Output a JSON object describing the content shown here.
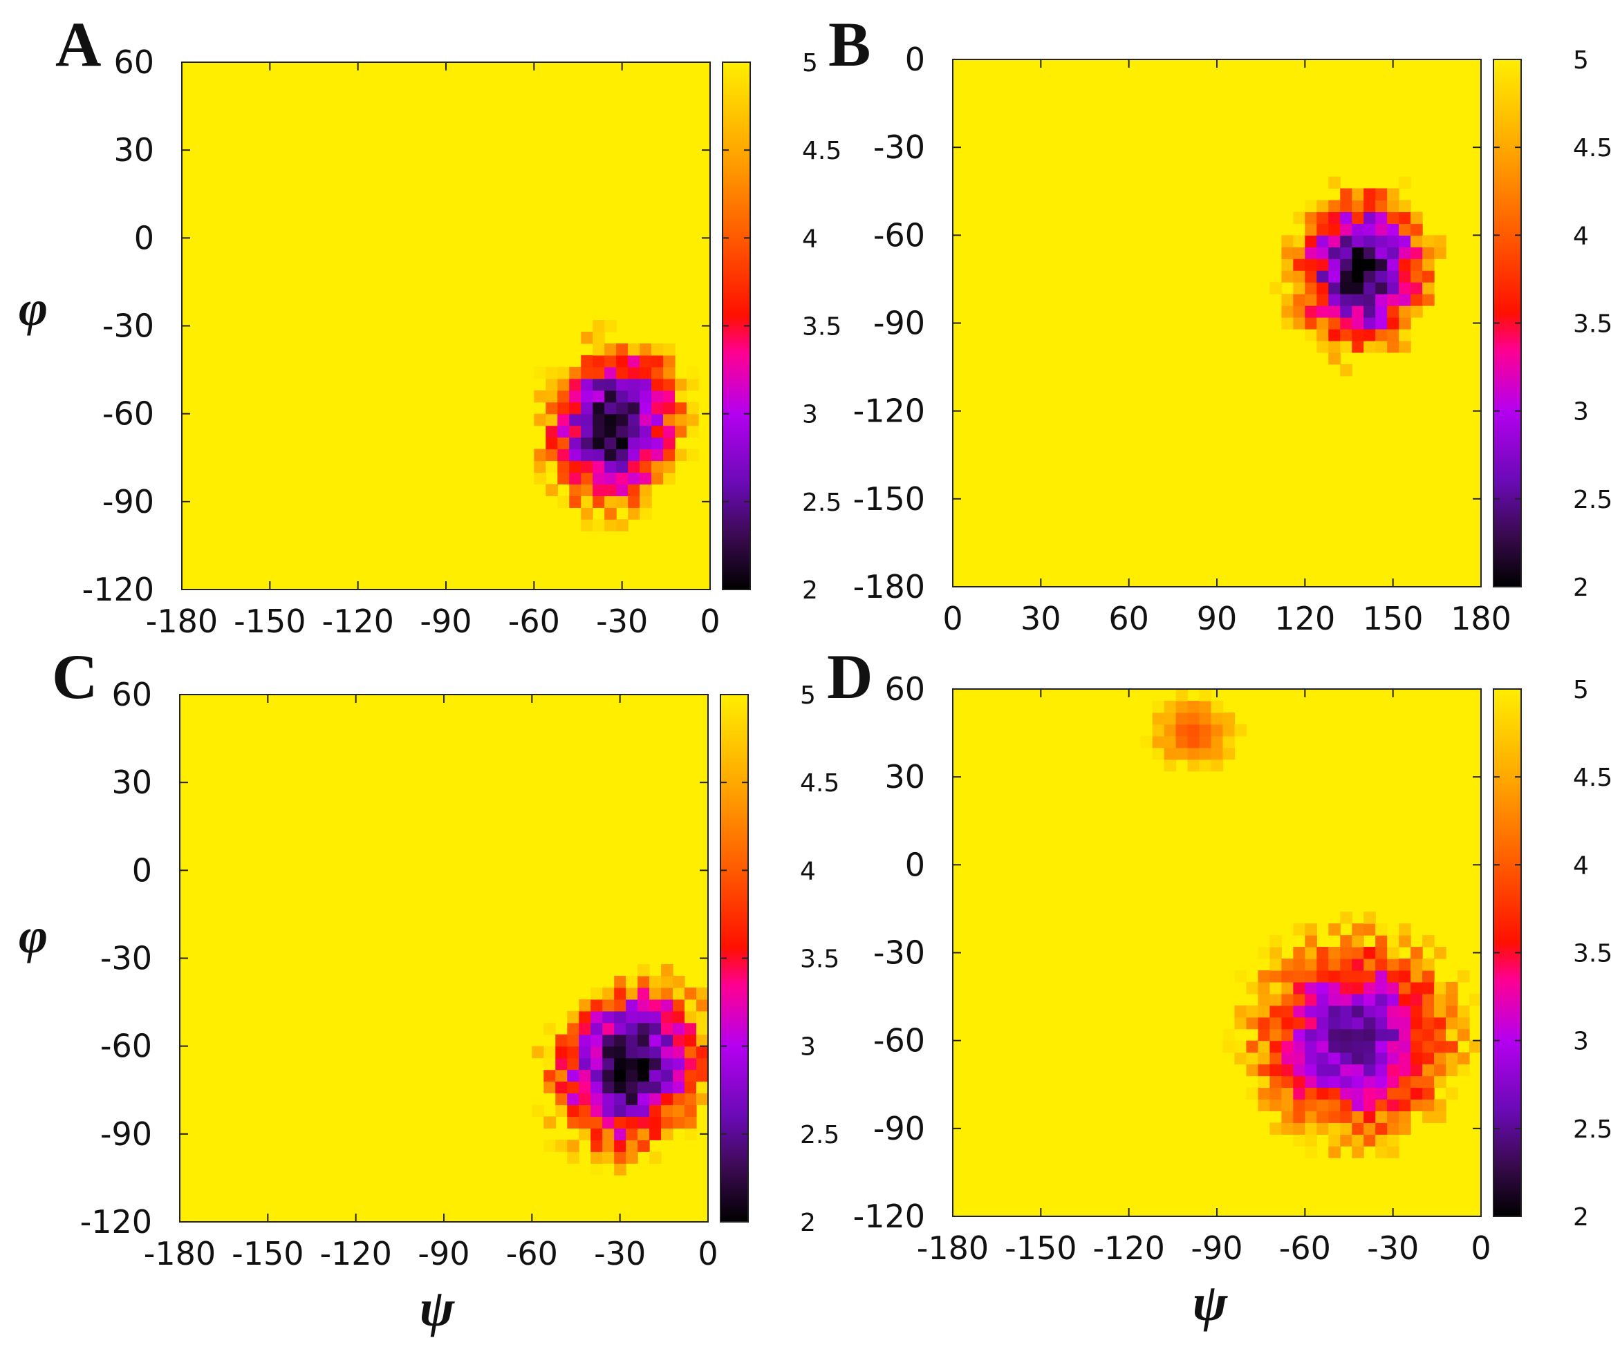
{
  "chart_data": [
    {
      "type": "heatmap",
      "panel_label": "A",
      "xlabel": "",
      "ylabel": "φ",
      "xlim": [
        -180,
        0
      ],
      "ylim": [
        -120,
        60
      ],
      "xticks": [
        "-180",
        "-150",
        "-120",
        "-90",
        "-60",
        "-30",
        "0"
      ],
      "yticks": [
        "60",
        "30",
        "0",
        "-30",
        "-60",
        "-90",
        "-120"
      ],
      "colorbar": {
        "min": 2,
        "max": 5,
        "ticks": [
          "5",
          "4.5",
          "4",
          "3.5",
          "3",
          "2.5",
          "2"
        ]
      },
      "background_value": 5,
      "grid_step": 4,
      "basins": [
        {
          "center": [
            -33,
            -64
          ],
          "radius": [
            18,
            23
          ],
          "tilt": -0.2,
          "min_value": 2.0,
          "noise": 0.5
        }
      ]
    },
    {
      "type": "heatmap",
      "panel_label": "B",
      "xlabel": "",
      "ylabel": "",
      "xlim": [
        0,
        180
      ],
      "ylim": [
        -180,
        0
      ],
      "xticks": [
        "0",
        "30",
        "60",
        "90",
        "120",
        "150",
        "180"
      ],
      "yticks": [
        "0",
        "-30",
        "-60",
        "-90",
        "-120",
        "-150",
        "-180"
      ],
      "colorbar": {
        "min": 2,
        "max": 5,
        "ticks": [
          "5",
          "4.5",
          "4",
          "3.5",
          "3",
          "2.5",
          "2"
        ]
      },
      "background_value": 5,
      "grid_step": 4,
      "basins": [
        {
          "center": [
            139,
            -72
          ],
          "radius": [
            18,
            22
          ],
          "tilt": -0.1,
          "min_value": 2.0,
          "noise": 0.5
        }
      ]
    },
    {
      "type": "heatmap",
      "panel_label": "C",
      "xlabel": "ψ",
      "ylabel": "φ",
      "xlim": [
        -180,
        0
      ],
      "ylim": [
        -120,
        60
      ],
      "xticks": [
        "-180",
        "-150",
        "-120",
        "-90",
        "-60",
        "-30",
        "0"
      ],
      "yticks": [
        "60",
        "30",
        "0",
        "-30",
        "-60",
        "-90",
        "-120"
      ],
      "colorbar": {
        "min": 2,
        "max": 5,
        "ticks": [
          "5",
          "4.5",
          "4",
          "3.5",
          "3",
          "2.5",
          "2"
        ]
      },
      "background_value": 5,
      "grid_step": 4,
      "basins": [
        {
          "center": [
            -27,
            -67
          ],
          "radius": [
            20,
            24
          ],
          "tilt": -0.45,
          "min_value": 2.0,
          "noise": 0.5
        }
      ]
    },
    {
      "type": "heatmap",
      "panel_label": "D",
      "xlabel": "ψ",
      "ylabel": "",
      "xlim": [
        -180,
        0
      ],
      "ylim": [
        -120,
        60
      ],
      "xticks": [
        "-180",
        "-150",
        "-120",
        "-90",
        "-60",
        "-30",
        "0"
      ],
      "yticks": [
        "60",
        "30",
        "0",
        "-30",
        "-60",
        "-90",
        "-120"
      ],
      "colorbar": {
        "min": 2,
        "max": 5,
        "ticks": [
          "5",
          "4.5",
          "4",
          "3.5",
          "3",
          "2.5",
          "2"
        ]
      },
      "background_value": 5,
      "grid_step": 4,
      "basins": [
        {
          "center": [
            -43,
            -59
          ],
          "radius": [
            27,
            27
          ],
          "tilt": -0.45,
          "min_value": 2.4,
          "noise": 0.5
        },
        {
          "center": [
            -98,
            45
          ],
          "radius": [
            11,
            9
          ],
          "tilt": 0.0,
          "min_value": 3.9,
          "noise": 0.45
        }
      ]
    }
  ]
}
